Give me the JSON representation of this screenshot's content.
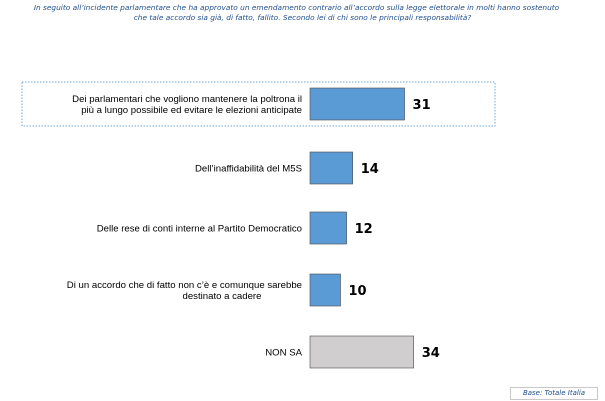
{
  "question": {
    "line1": "In seguito all’incidente parlamentare che ha approvato un emendamento contrario all’accordo sulla legge elettorale in molti hanno sostenuto",
    "line2": "che tale accordo sia già, di fatto, fallito. Secondo lei di chi sono le principali responsabilità?"
  },
  "chart_data": {
    "type": "bar",
    "orientation": "horizontal",
    "categories": [
      [
        "Dei parlamentari che vogliono mantenere la poltrona il",
        "più a lungo possibile ed evitare le elezioni anticipate"
      ],
      [
        "Dell’inaffidabilità del M5S"
      ],
      [
        "Delle rese di conti interne al Partito Democratico"
      ],
      [
        "Di un accordo che di fatto non c’è e comunque sarebbe",
        "destinato a cadere"
      ],
      [
        "NON SA"
      ]
    ],
    "values": [
      31,
      14,
      12,
      10,
      34
    ],
    "colors": [
      "#5b9bd5",
      "#5b9bd5",
      "#5b9bd5",
      "#5b9bd5",
      "#d0cece"
    ],
    "highlighted_category_index": 0
  },
  "footer": {
    "base_label": "Base: Totale Italia"
  }
}
